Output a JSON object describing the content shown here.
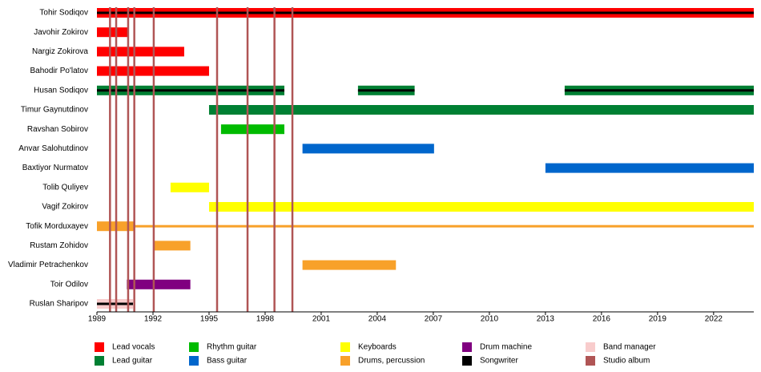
{
  "chart_data": {
    "type": "timeline",
    "xlim": [
      1989,
      2024.15
    ],
    "xticks": [
      1989,
      1992,
      1995,
      1998,
      2001,
      2004,
      2007,
      2010,
      2013,
      2016,
      2019,
      2022
    ],
    "roles": [
      {
        "name": "Lead vocals",
        "color": "#ff0000"
      },
      {
        "name": "Lead guitar",
        "color": "#008033"
      },
      {
        "name": "Rhythm guitar",
        "color": "#00bb00"
      },
      {
        "name": "Bass guitar",
        "color": "#0066cc"
      },
      {
        "name": "Keyboards",
        "color": "#ffff00"
      },
      {
        "name": "Drums, percussion",
        "color": "#f8a12a"
      },
      {
        "name": "Drum machine",
        "color": "#800080"
      },
      {
        "name": "Songwriter",
        "color": "#000000",
        "overlay": true
      },
      {
        "name": "Band manager",
        "color": "#f8cccc"
      },
      {
        "name": "Studio album",
        "color": "#b05555"
      }
    ],
    "albums": [
      1989.7,
      1990.03,
      1990.67,
      1991.0,
      1992.04,
      1995.43,
      1997.06,
      1998.5,
      1999.46
    ],
    "album_role": "Studio album",
    "members": [
      {
        "name": "Tohir Sodiqov",
        "bars": [
          {
            "role": "Lead vocals",
            "start": 1989,
            "end": 2024.15
          },
          {
            "role": "Songwriter",
            "start": 1989,
            "end": 2024.15
          }
        ]
      },
      {
        "name": "Javohir Zokirov",
        "bars": [
          {
            "role": "Lead vocals",
            "start": 1989,
            "end": 1990.67
          }
        ]
      },
      {
        "name": "Nargiz Zokirova",
        "bars": [
          {
            "role": "Lead vocals",
            "start": 1989,
            "end": 1993.67
          }
        ]
      },
      {
        "name": "Bahodir Po'latov",
        "bars": [
          {
            "role": "Lead vocals",
            "start": 1989,
            "end": 1995.0
          }
        ]
      },
      {
        "name": "Husan Sodiqov",
        "bars": [
          {
            "role": "Lead guitar",
            "start": 1989,
            "end": 1999.03
          },
          {
            "role": "Lead guitar",
            "start": 2002.97,
            "end": 2006.0
          },
          {
            "role": "Lead guitar",
            "start": 2014.03,
            "end": 2024.15
          },
          {
            "role": "Songwriter",
            "start": 1989,
            "end": 1999.03
          },
          {
            "role": "Songwriter",
            "start": 2002.97,
            "end": 2006.0
          },
          {
            "role": "Songwriter",
            "start": 2014.03,
            "end": 2024.15
          }
        ]
      },
      {
        "name": "Timur Gaynutdinov",
        "bars": [
          {
            "role": "Lead guitar",
            "start": 1995.0,
            "end": 2024.15
          }
        ]
      },
      {
        "name": "Ravshan Sobirov",
        "bars": [
          {
            "role": "Rhythm guitar",
            "start": 1995.64,
            "end": 1999.03
          }
        ]
      },
      {
        "name": "Anvar Salohutdinov",
        "bars": [
          {
            "role": "Bass guitar",
            "start": 2000.0,
            "end": 2007.04
          }
        ]
      },
      {
        "name": "Baxtiyor Nurmatov",
        "bars": [
          {
            "role": "Bass guitar",
            "start": 2013.0,
            "end": 2024.15
          }
        ]
      },
      {
        "name": "Tolib Quliyev",
        "bars": [
          {
            "role": "Keyboards",
            "start": 1992.94,
            "end": 1995.0
          }
        ]
      },
      {
        "name": "Vagif Zokirov",
        "bars": [
          {
            "role": "Keyboards",
            "start": 1995.0,
            "end": 2024.15
          }
        ]
      },
      {
        "name": "Tofik Morduxayev",
        "bars": [
          {
            "role": "Drums, percussion",
            "start": 1989,
            "end": 1991.0
          },
          {
            "role": "Drums, percussion",
            "start": 1991.0,
            "end": 2024.15,
            "thin": true
          }
        ]
      },
      {
        "name": "Rustam Zohidov",
        "bars": [
          {
            "role": "Drums, percussion",
            "start": 1992.0,
            "end": 1994.0
          }
        ]
      },
      {
        "name": "Vladimir Petrachenkov",
        "bars": [
          {
            "role": "Drums, percussion",
            "start": 2000.0,
            "end": 2005.0
          }
        ]
      },
      {
        "name": "Toir Odilov",
        "bars": [
          {
            "role": "Drum machine",
            "start": 1990.6,
            "end": 1994.0
          }
        ]
      },
      {
        "name": "Ruslan Sharipov",
        "bars": [
          {
            "role": "Band manager",
            "start": 1989,
            "end": 1990.93
          },
          {
            "role": "Songwriter",
            "start": 1989,
            "end": 1990.93
          }
        ]
      }
    ]
  }
}
